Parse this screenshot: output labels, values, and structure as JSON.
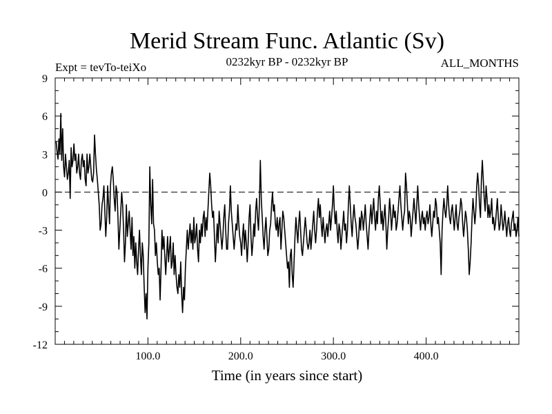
{
  "chart_data": {
    "type": "line",
    "title": "Merid Stream Func. Atlantic (Sv)",
    "subtitle": "0232kyr BP - 0232kyr BP",
    "header_left": "Expt = tevTo-teiXo",
    "header_right": "ALL_MONTHS",
    "xlabel": "Time (in years since start)",
    "ylabel": "",
    "xlim": [
      0,
      500
    ],
    "ylim": [
      -12,
      9
    ],
    "x_ticks": [
      100,
      200,
      300,
      400
    ],
    "x_tick_labels": [
      "100.0",
      "200.0",
      "300.0",
      "400.0"
    ],
    "y_ticks": [
      -12,
      -9,
      -6,
      -3,
      0,
      3,
      6,
      9
    ],
    "y_tick_labels": [
      "-12",
      "-9",
      "-6",
      "-3",
      "0",
      "3",
      "6",
      "9"
    ],
    "zero_line": {
      "y": 0,
      "style": "dashed"
    },
    "grid": false,
    "series": [
      {
        "color": "#000000",
        "x_start": 1,
        "x_step": 1,
        "values": [
          4.0,
          3.2,
          2.6,
          4.2,
          3.0,
          6.2,
          2.5,
          5.0,
          2.0,
          1.2,
          3.0,
          2.0,
          1.0,
          1.5,
          2.5,
          -0.5,
          3.5,
          2.0,
          2.5,
          3.8,
          2.5,
          3.0,
          1.5,
          2.0,
          3.0,
          1.5,
          1.0,
          2.5,
          3.0,
          2.0,
          2.5,
          1.0,
          0.5,
          3.0,
          1.5,
          2.0,
          3.0,
          2.0,
          1.0,
          0.8,
          1.5,
          4.5,
          3.0,
          1.8,
          1.0,
          0.0,
          -1.0,
          -3.0,
          -2.5,
          -1.0,
          -0.5,
          0.5,
          -1.5,
          -3.5,
          -2.0,
          0.5,
          -1.0,
          -2.5,
          0.5,
          1.5,
          2.0,
          1.0,
          -0.5,
          -1.5,
          0.5,
          0.0,
          -2.0,
          -4.5,
          -3.0,
          -1.5,
          0.0,
          -1.0,
          -3.0,
          -5.5,
          -4.0,
          -1.0,
          -3.5,
          -2.5,
          -1.5,
          -3.0,
          -4.5,
          -2.0,
          -5.0,
          -3.5,
          -6.0,
          -4.0,
          -5.5,
          -6.5,
          -4.5,
          -3.0,
          -5.0,
          -6.5,
          -4.0,
          -5.0,
          -7.5,
          -9.5,
          -8.0,
          -10.0,
          -6.0,
          -4.0,
          2.0,
          -1.0,
          -2.5,
          1.0,
          -2.5,
          -3.0,
          -5.0,
          -4.0,
          -5.5,
          -6.5,
          -6.0,
          -8.5,
          -6.0,
          -3.0,
          -4.5,
          -3.5,
          -5.0,
          -6.5,
          -5.0,
          -3.5,
          -5.5,
          -4.5,
          -3.5,
          -6.0,
          -5.5,
          -4.0,
          -6.5,
          -5.0,
          -6.5,
          -7.5,
          -8.0,
          -6.5,
          -7.5,
          -5.5,
          -8.0,
          -9.5,
          -7.5,
          -8.5,
          -6.0,
          -4.5,
          -3.0,
          -4.5,
          -3.5,
          -2.5,
          -4.0,
          -3.0,
          -4.5,
          -2.0,
          -4.0,
          -3.5,
          -2.5,
          -4.5,
          -5.5,
          -3.0,
          -4.0,
          -2.5,
          -3.5,
          -2.0,
          -1.5,
          -3.5,
          -2.0,
          -3.0,
          -1.5,
          0.0,
          1.5,
          0.5,
          -1.0,
          -2.0,
          -1.5,
          -3.5,
          -5.5,
          -4.0,
          -2.5,
          -4.0,
          -1.5,
          -2.5,
          -3.5,
          -4.5,
          -3.5,
          -2.0,
          -1.0,
          -3.0,
          -4.5,
          -4.5,
          -2.5,
          -1.5,
          0.5,
          -1.5,
          -2.5,
          -3.5,
          -4.5,
          -3.5,
          -2.5,
          -3.0,
          -1.0,
          -2.5,
          -3.5,
          -4.0,
          -5.0,
          -3.5,
          -2.5,
          -4.5,
          -3.0,
          -4.0,
          -5.5,
          -4.0,
          -2.0,
          -1.0,
          -3.5,
          -5.0,
          -4.0,
          -2.5,
          -3.5,
          -1.5,
          -0.5,
          -2.0,
          -3.0,
          -1.0,
          2.5,
          -0.5,
          -2.0,
          -3.5,
          -4.5,
          -3.0,
          -2.0,
          -3.5,
          -5.0,
          -4.5,
          -3.0,
          -2.5,
          -1.0,
          0.0,
          -1.5,
          -1.0,
          -2.5,
          -3.0,
          -2.0,
          -3.5,
          -2.5,
          -2.0,
          -4.5,
          -3.0,
          -1.5,
          -2.0,
          -3.0,
          -4.0,
          -5.0,
          -6.0,
          -5.5,
          -7.5,
          -5.0,
          -4.5,
          -6.5,
          -7.5,
          -5.5,
          -3.5,
          -2.0,
          -3.0,
          -4.0,
          -2.5,
          -1.5,
          -3.0,
          -4.5,
          -5.0,
          -4.0,
          -3.0,
          -2.0,
          -3.0,
          -4.0,
          -4.5,
          -4.0,
          -3.0,
          -4.5,
          -3.5,
          -2.5,
          -1.5,
          -3.0,
          -4.0,
          -3.0,
          -1.5,
          -0.5,
          -2.0,
          -1.0,
          -2.5,
          -3.5,
          -2.0,
          -3.0,
          -4.0,
          -3.0,
          -2.5,
          -3.5,
          -2.5,
          -1.5,
          -3.0,
          -2.0,
          -1.0,
          0.5,
          -1.5,
          -2.5,
          -1.5,
          -3.0,
          -4.0,
          -2.5,
          -3.0,
          -4.5,
          -3.5,
          -2.5,
          -1.5,
          -3.0,
          -2.5,
          -4.0,
          -3.0,
          -1.0,
          0.5,
          -1.0,
          -2.5,
          -3.5,
          -2.0,
          -1.0,
          -2.0,
          -2.5,
          -3.5,
          -4.5,
          -3.5,
          -2.0,
          -3.0,
          -1.5,
          -2.0,
          -3.0,
          -2.0,
          -1.0,
          -2.5,
          -3.5,
          -4.5,
          -3.0,
          -2.0,
          -1.0,
          -2.5,
          -1.5,
          -0.5,
          -2.0,
          -3.0,
          -1.5,
          -2.5,
          -0.5,
          0.5,
          -1.0,
          -2.5,
          -1.5,
          -3.0,
          -2.0,
          -1.0,
          -2.5,
          -4.5,
          -3.0,
          -2.0,
          -0.5,
          -1.5,
          -3.0,
          -2.0,
          -1.0,
          -2.0,
          -1.5,
          -3.0,
          -2.5,
          -1.5,
          -0.5,
          0.5,
          -1.0,
          -2.0,
          -3.0,
          -2.0,
          -1.5,
          1.5,
          0.5,
          -1.0,
          -2.5,
          -1.5,
          -2.0,
          -3.5,
          -2.5,
          -1.5,
          -0.5,
          -1.5,
          -2.5,
          -1.0,
          0.5,
          -1.0,
          -2.0,
          -3.0,
          -2.0,
          -1.5,
          -2.5,
          -2.0,
          -3.0,
          -2.0,
          -1.5,
          -2.5,
          -2.0,
          -1.0,
          -2.5,
          -3.5,
          -2.5,
          -1.5,
          -2.0,
          -0.5,
          -1.0,
          -2.5,
          -2.0,
          -3.0,
          -4.0,
          -6.5,
          -3.0,
          -1.5,
          -0.5,
          -1.5,
          -2.0,
          -1.0,
          0.5,
          -1.0,
          -2.0,
          -2.5,
          -1.5,
          -1.0,
          -2.0,
          -3.0,
          -2.0,
          -1.0,
          -2.5,
          -3.0,
          -2.0,
          -1.5,
          -0.5,
          -1.0,
          -2.5,
          -3.5,
          -2.5,
          -1.5,
          -2.0,
          -3.0,
          -4.5,
          -6.5,
          -5.5,
          -4.0,
          -2.0,
          -0.5,
          -1.5,
          -2.5,
          -1.5,
          0.5,
          1.5,
          0.5,
          -1.0,
          -2.0,
          1.0,
          2.5,
          1.0,
          -0.5,
          -1.5,
          0.5,
          -0.5,
          -2.0,
          -1.0,
          -2.0,
          -1.5,
          -0.5,
          -2.5,
          -2.0,
          -3.0,
          -2.5,
          -1.5,
          -0.5,
          -2.0,
          -3.0,
          -2.5,
          -1.0,
          -2.0,
          -3.0,
          -2.5,
          -1.5,
          -2.5,
          -3.5,
          -2.5,
          -2.0,
          -3.0,
          -3.5,
          -2.5,
          -2.0,
          -1.5,
          -3.0,
          -2.5,
          -3.5,
          -3.0,
          -2.0,
          -3.5
        ]
      }
    ]
  }
}
